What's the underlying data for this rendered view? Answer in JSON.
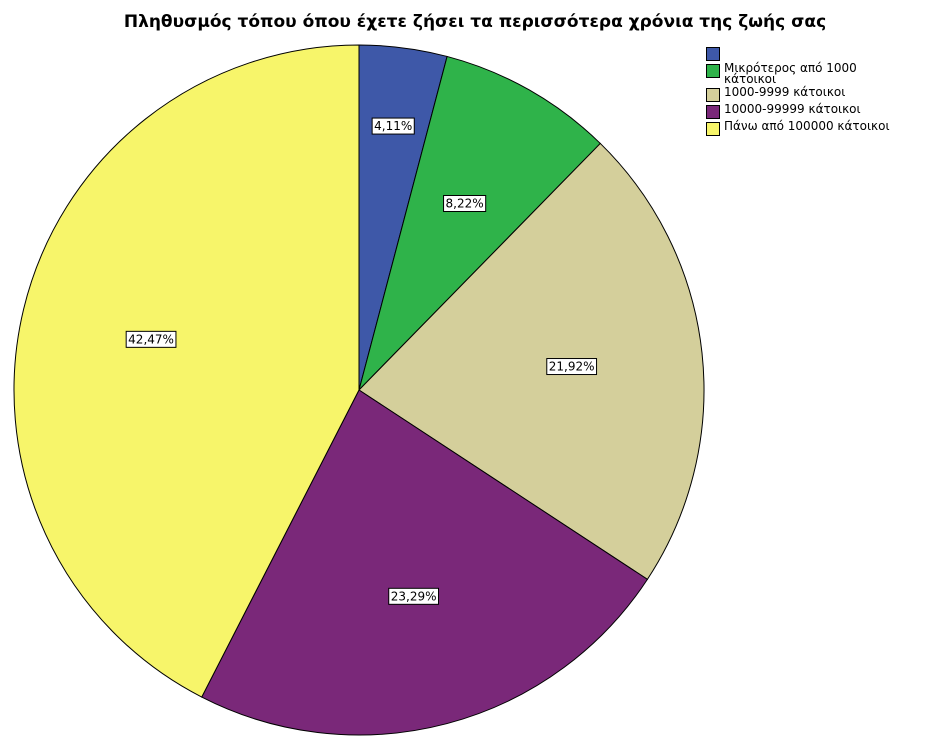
{
  "chart_data": {
    "type": "pie",
    "title": "Πληθυσμός τόπου όπου έχετε ζήσει τα περισσότερα χρόνια της ζωής σας",
    "categories": [
      null,
      "Μικρότερος από 1000 κάτοικοι",
      "1000-9999 κάτοικοι",
      "10000-99999 κάτοικοι",
      "Πάνω από 100000 κάτοικοι"
    ],
    "values": [
      4.11,
      8.22,
      21.92,
      23.29,
      42.47
    ],
    "value_labels": [
      "4,11%",
      "8,22%",
      "21,92%",
      "23,29%",
      "42,47%"
    ],
    "colors": [
      "#3e58a8",
      "#2fb34a",
      "#d4cf9b",
      "#7a2879",
      "#f7f56a"
    ],
    "legend": "top-right"
  }
}
